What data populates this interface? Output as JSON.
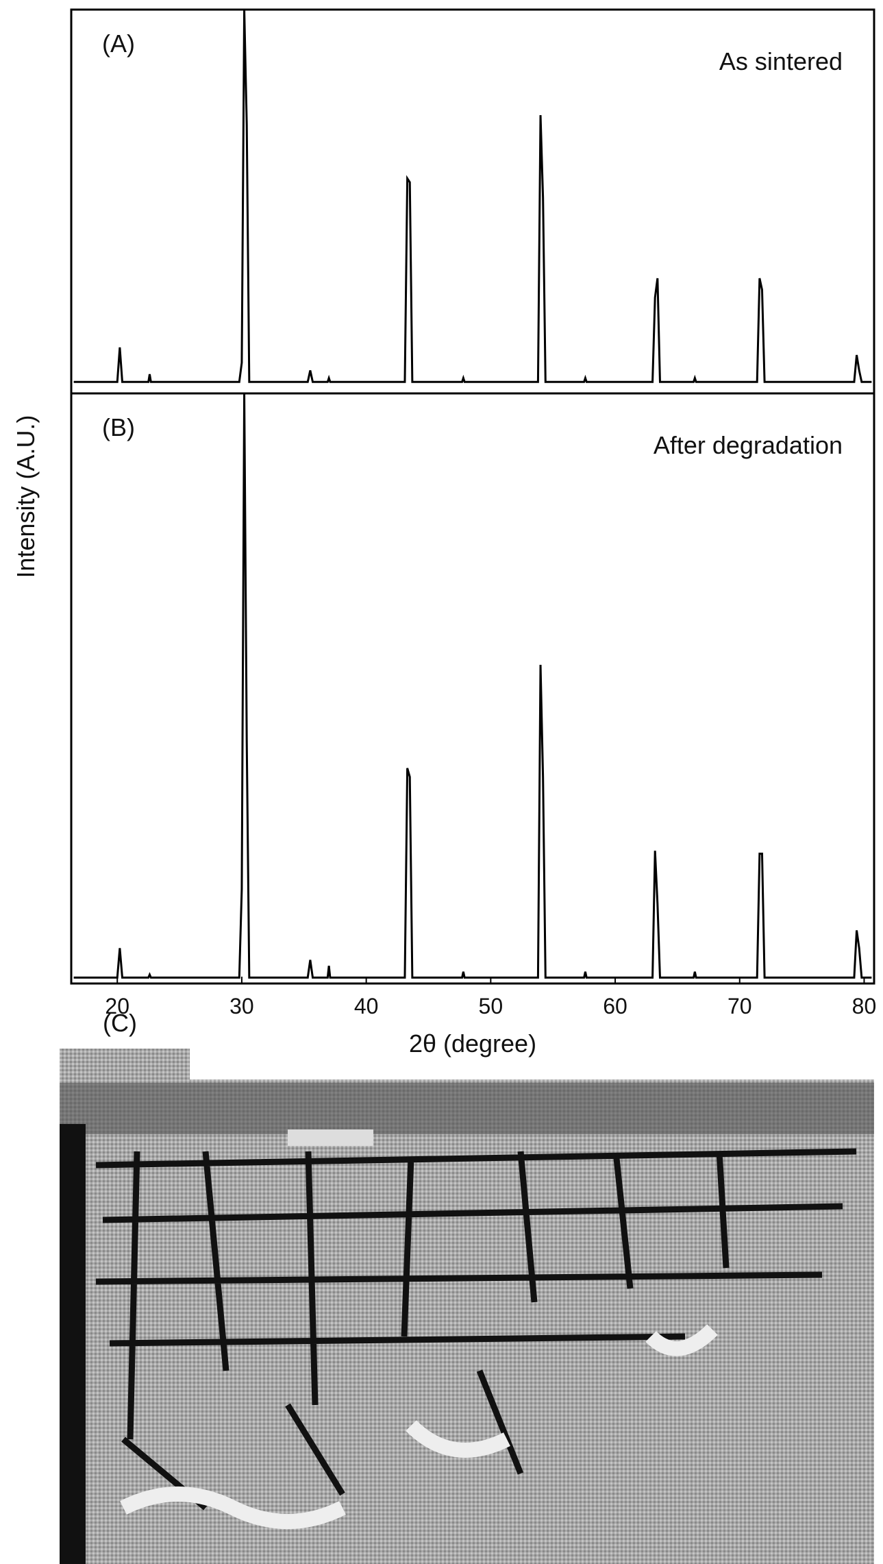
{
  "chart_data": [
    {
      "type": "line",
      "label": "(A)",
      "annotation": "As sintered",
      "y_label": "Intensity (A.U.)",
      "color": "#000000",
      "xlim": [
        16.3,
        80.8
      ],
      "ylim": [
        0,
        100
      ],
      "x": [
        16.5,
        20.0,
        20.2,
        20.4,
        22.5,
        22.6,
        22.7,
        29.8,
        30.0,
        30.2,
        30.4,
        30.6,
        35.3,
        35.5,
        35.7,
        36.9,
        37.0,
        37.1,
        43.1,
        43.3,
        43.5,
        43.7,
        47.7,
        47.8,
        47.9,
        53.8,
        54.0,
        54.2,
        54.4,
        57.5,
        57.6,
        57.7,
        63.0,
        63.2,
        63.4,
        63.6,
        66.3,
        66.4,
        66.5,
        71.4,
        71.6,
        71.8,
        72.0,
        79.2,
        79.4,
        79.6,
        79.8,
        80.6
      ],
      "values": [
        3,
        3,
        12,
        3,
        3,
        5,
        3,
        3,
        8,
        100,
        70,
        3,
        3,
        6,
        3,
        3,
        4,
        3,
        3,
        56,
        55,
        3,
        3,
        4,
        3,
        3,
        72.5,
        51,
        3,
        3,
        4,
        3,
        3,
        25,
        30,
        3,
        3,
        4,
        3,
        3,
        30,
        27,
        3,
        3,
        10,
        6,
        3,
        3
      ]
    },
    {
      "type": "line",
      "label": "(B)",
      "annotation": "After degradation",
      "x_label": "2θ (degree)",
      "color": "#000000",
      "xlim": [
        16.3,
        80.8
      ],
      "ylim": [
        0,
        100
      ],
      "xticks": [
        20,
        30,
        40,
        50,
        60,
        70,
        80
      ],
      "x": [
        16.5,
        20.0,
        20.2,
        20.4,
        22.5,
        22.6,
        22.7,
        29.8,
        30.0,
        30.2,
        30.4,
        30.6,
        35.3,
        35.5,
        35.7,
        36.9,
        37.0,
        37.1,
        43.1,
        43.3,
        43.5,
        43.7,
        47.7,
        47.8,
        47.9,
        53.8,
        54.0,
        54.2,
        54.4,
        57.5,
        57.6,
        57.7,
        63.0,
        63.2,
        63.4,
        63.6,
        66.3,
        66.4,
        66.5,
        71.4,
        71.6,
        71.8,
        72.0,
        79.2,
        79.4,
        79.6,
        79.8,
        80.6
      ],
      "values": [
        1,
        1,
        6,
        1,
        1,
        1.5,
        1,
        1,
        16,
        100,
        41,
        1,
        1,
        4,
        1,
        1,
        3,
        1,
        1,
        36.5,
        35,
        1,
        1,
        2,
        1,
        1,
        54,
        35,
        1,
        1,
        2,
        1,
        1,
        22.5,
        13.5,
        1,
        1,
        2,
        1,
        1,
        22,
        22,
        1,
        1,
        9,
        6,
        1,
        1
      ]
    }
  ],
  "panel_c": {
    "label": "(C)"
  }
}
